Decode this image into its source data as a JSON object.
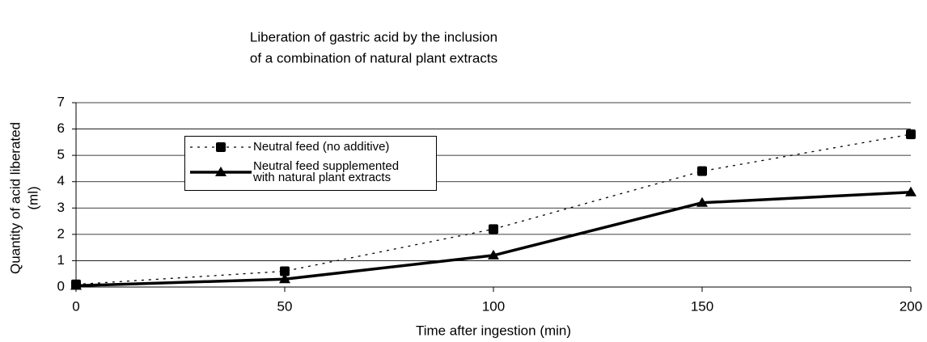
{
  "chart_data": {
    "type": "line",
    "title": [
      "Liberation of gastric acid by the inclusion",
      "of a combination of natural plant extracts"
    ],
    "x_label": "Time after ingestion (min)",
    "y_label": [
      "Quantity of acid liberated",
      "(ml)"
    ],
    "x": [
      0,
      50,
      100,
      150,
      200
    ],
    "series": [
      {
        "name": "Neutral feed (no additive)",
        "color": "#000000",
        "dash": true,
        "marker": "square",
        "values": [
          0.1,
          0.6,
          2.2,
          4.4,
          5.8
        ]
      },
      {
        "name": "Neutral feed supplemented with natural plant extracts",
        "color": "#000000",
        "dash": false,
        "marker": "triangle",
        "values": [
          0.05,
          0.3,
          1.2,
          3.2,
          3.6
        ]
      }
    ],
    "xlim": [
      0,
      200
    ],
    "xticks": [
      0,
      50,
      100,
      150,
      200
    ],
    "ylim": [
      0,
      7
    ],
    "yticks": [
      0,
      1,
      2,
      3,
      4,
      5,
      6,
      7
    ],
    "grid": true
  }
}
